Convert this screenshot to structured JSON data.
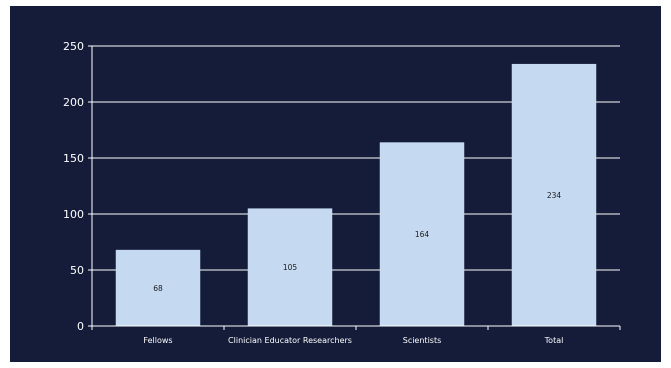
{
  "chart_data": {
    "type": "bar",
    "categories": [
      "Fellows",
      "Clinician Educator Researchers",
      "Scientists",
      "Total"
    ],
    "values": [
      68,
      105,
      164,
      234
    ],
    "ylim": [
      0,
      250
    ],
    "yticks": [
      0,
      50,
      100,
      150,
      200,
      250
    ],
    "grid": true,
    "legend": "none",
    "colors": {
      "background": "#141c3a",
      "bar": "#c5d9f1",
      "grid": "#ffffff",
      "axis_text": "#ffffff",
      "data_label": "#1a1a1a"
    }
  }
}
